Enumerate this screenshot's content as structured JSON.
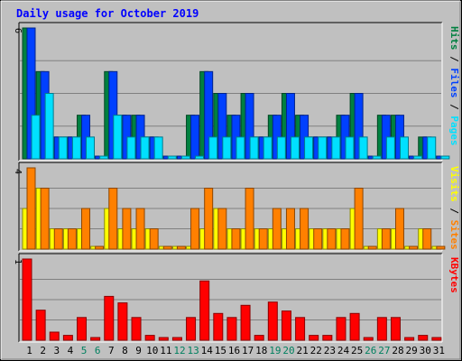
{
  "chart_data": {
    "type": "bar",
    "title": "Daily usage for October 2019",
    "categories": [
      "1",
      "2",
      "3",
      "4",
      "5",
      "6",
      "7",
      "8",
      "9",
      "10",
      "11",
      "12",
      "13",
      "14",
      "15",
      "16",
      "17",
      "18",
      "19",
      "20",
      "21",
      "22",
      "23",
      "24",
      "25",
      "26",
      "27",
      "28",
      "29",
      "30",
      "31"
    ],
    "weekend_days": [
      "5",
      "6",
      "12",
      "13",
      "19",
      "20",
      "26",
      "27"
    ],
    "panels": [
      {
        "name": "hits-files-pages",
        "ymax": 6,
        "ymax_label": "6",
        "side_labels": [
          {
            "text": "Hits",
            "color": "#008040"
          },
          {
            "text": " / ",
            "color": "#000000"
          },
          {
            "text": "Files",
            "color": "#0040ff"
          },
          {
            "text": " / ",
            "color": "#000000"
          },
          {
            "text": "Pages",
            "color": "#00e0ff"
          }
        ],
        "series": [
          {
            "name": "Hits",
            "color": "#008040",
            "values": [
              6,
              4,
              1,
              1,
              2,
              0,
              4,
              2,
              2,
              1,
              0,
              0,
              2,
              4,
              3,
              2,
              3,
              1,
              2,
              3,
              2,
              1,
              1,
              2,
              3,
              0,
              2,
              2,
              0,
              1,
              0
            ]
          },
          {
            "name": "Files",
            "color": "#0040ff",
            "values": [
              6,
              4,
              1,
              1,
              2,
              0,
              4,
              2,
              2,
              1,
              0,
              0,
              2,
              4,
              3,
              2,
              3,
              1,
              2,
              3,
              2,
              1,
              1,
              2,
              3,
              0,
              2,
              2,
              0,
              1,
              0
            ]
          },
          {
            "name": "Pages",
            "color": "#00e0ff",
            "values": [
              2,
              3,
              1,
              1,
              1,
              0,
              2,
              1,
              1,
              1,
              0,
              0,
              0,
              1,
              1,
              1,
              1,
              1,
              1,
              1,
              1,
              1,
              1,
              1,
              1,
              0,
              1,
              1,
              0,
              1,
              0
            ]
          }
        ]
      },
      {
        "name": "visits-sites",
        "ymax": 4,
        "ymax_label": "4",
        "side_labels": [
          {
            "text": "Visits",
            "color": "#ffff00"
          },
          {
            "text": " / ",
            "color": "#000000"
          },
          {
            "text": "Sites",
            "color": "#ff8000"
          }
        ],
        "series": [
          {
            "name": "Visits",
            "color": "#ffff00",
            "values": [
              2,
              3,
              1,
              1,
              1,
              0,
              2,
              1,
              1,
              1,
              0,
              0,
              0,
              1,
              2,
              1,
              1,
              1,
              1,
              1,
              1,
              1,
              1,
              1,
              2,
              0,
              1,
              1,
              0,
              1,
              0
            ]
          },
          {
            "name": "Sites",
            "color": "#ff8000",
            "values": [
              4,
              3,
              1,
              1,
              2,
              0,
              3,
              2,
              2,
              1,
              0,
              0,
              2,
              3,
              2,
              1,
              3,
              1,
              2,
              2,
              2,
              1,
              1,
              1,
              3,
              0,
              1,
              2,
              0,
              1,
              0
            ]
          }
        ]
      },
      {
        "name": "kbytes",
        "ymax": 1,
        "ymax_label": "1",
        "side_labels": [
          {
            "text": "KBytes",
            "color": "#ff0000"
          }
        ],
        "series": [
          {
            "name": "KBytes",
            "color": "#ff0000",
            "values": [
              1.0,
              0.37,
              0.1,
              0.06,
              0.28,
              0,
              0.54,
              0.46,
              0.28,
              0.06,
              0,
              0,
              0.28,
              0.73,
              0.33,
              0.28,
              0.43,
              0.06,
              0.47,
              0.36,
              0.28,
              0.06,
              0.06,
              0.28,
              0.33,
              0,
              0.28,
              0.28,
              0,
              0.06,
              0
            ]
          }
        ]
      }
    ]
  }
}
